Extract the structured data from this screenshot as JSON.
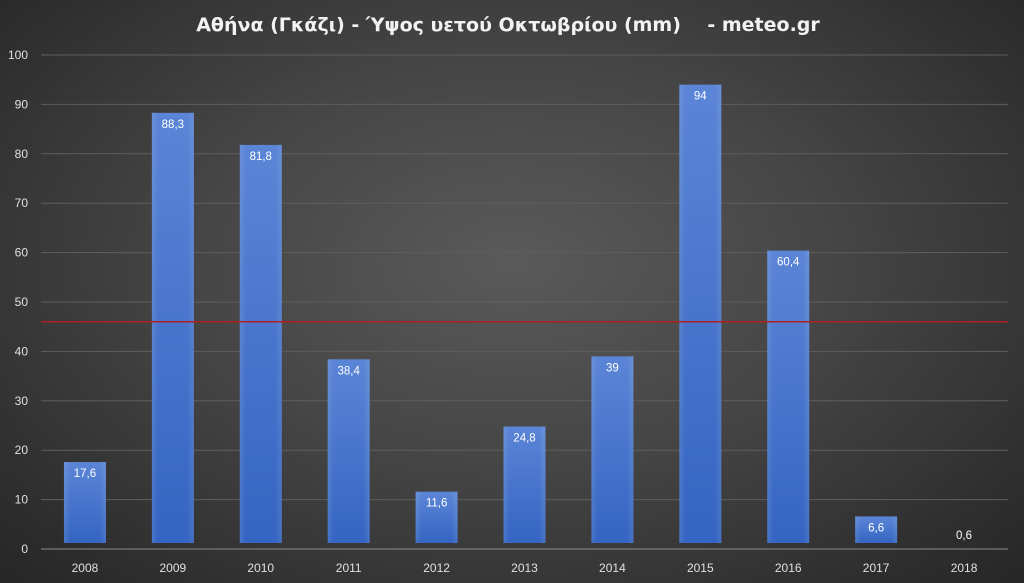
{
  "chart_data": {
    "type": "bar",
    "title": "Αθήνα (Γκάζι) - Ύψος υετού Οκτωβρίου (mm)    - meteo.gr",
    "categories": [
      "2008",
      "2009",
      "2010",
      "2011",
      "2012",
      "2013",
      "2014",
      "2015",
      "2016",
      "2017",
      "2018"
    ],
    "values": [
      17.6,
      88.3,
      81.8,
      38.4,
      11.6,
      24.8,
      39,
      94,
      60.4,
      6.6,
      0.6
    ],
    "data_labels": [
      "17,6",
      "88,3",
      "81,8",
      "38,4",
      "11,6",
      "24,8",
      "39",
      "94",
      "60,4",
      "6,6",
      "0,6"
    ],
    "y_ticks": [
      "0",
      "10",
      "20",
      "30",
      "40",
      "50",
      "60",
      "70",
      "80",
      "90",
      "100"
    ],
    "ylim": [
      0,
      100
    ],
    "reference_line": 46,
    "grid": true,
    "xlabel": "",
    "ylabel": "",
    "colors": {
      "bar": "#4472c4",
      "reference_line": "#b02020",
      "grid": "#5e5e5e"
    }
  }
}
